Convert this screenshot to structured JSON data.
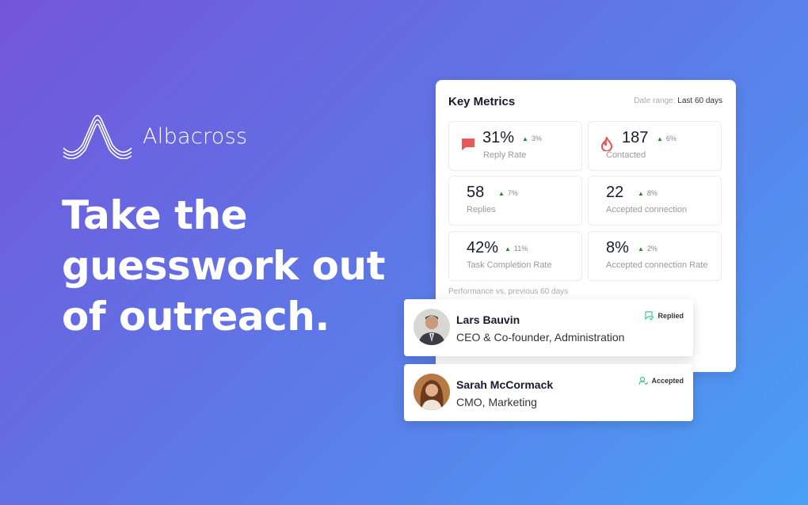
{
  "brand": {
    "name": "Albacross"
  },
  "headline": {
    "lines": [
      "Take the",
      "guesswork out",
      "of outreach."
    ]
  },
  "metrics": {
    "title": "Key Metrics",
    "date_range_label": "Date range:",
    "date_range_value": "Last 60 days",
    "tiles": [
      {
        "value": "31%",
        "delta": "3%",
        "label": "Reply Rate",
        "icon": "chat-bubble-icon"
      },
      {
        "value": "187",
        "delta": "6%",
        "label": "Contacted",
        "icon": "flame-icon"
      },
      {
        "value": "58",
        "delta": "7%",
        "label": "Replies"
      },
      {
        "value": "22",
        "delta": "8%",
        "label": "Accepted connection"
      },
      {
        "value": "42%",
        "delta": "11%",
        "label": "Task Completion Rate"
      },
      {
        "value": "8%",
        "delta": "2%",
        "label": "Accepted connection Rate"
      }
    ],
    "footnote": "Performance vs. previous 60 days",
    "colors": {
      "icon": "#e85a5a",
      "up": "#1e8a2e"
    }
  },
  "people": [
    {
      "name": "Lars Bauvin",
      "role": "CEO & Co-founder, Administration",
      "status": "Replied"
    },
    {
      "name": "Sarah McCormack",
      "role": "CMO, Marketing",
      "status": "Accepted"
    }
  ]
}
